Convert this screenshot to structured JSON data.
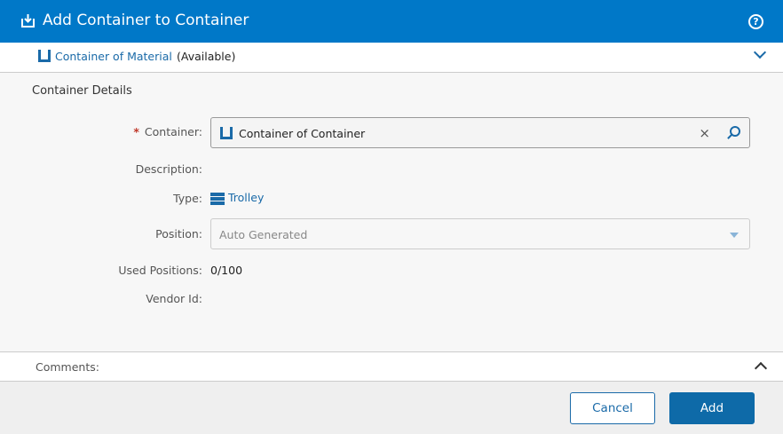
{
  "header": {
    "title": "Add Container to Container",
    "help_icon": "?"
  },
  "material": {
    "name": "Container of Material",
    "status": "(Available)"
  },
  "details": {
    "section_title": "Container Details",
    "container_label": "Container:",
    "required_mark": "*",
    "container_value": "Container of Container",
    "clear_icon": "×",
    "description_label": "Description:",
    "type_label": "Type:",
    "type_value": "Trolley",
    "position_label": "Position:",
    "position_value": "Auto Generated",
    "used_positions_label": "Used Positions:",
    "used_positions_value": "0/100",
    "vendor_id_label": "Vendor Id:"
  },
  "comments": {
    "label": "Comments:"
  },
  "footer": {
    "cancel": "Cancel",
    "add": "Add"
  },
  "colors": {
    "header": "#0078c8",
    "accent": "#1a6aa8"
  }
}
